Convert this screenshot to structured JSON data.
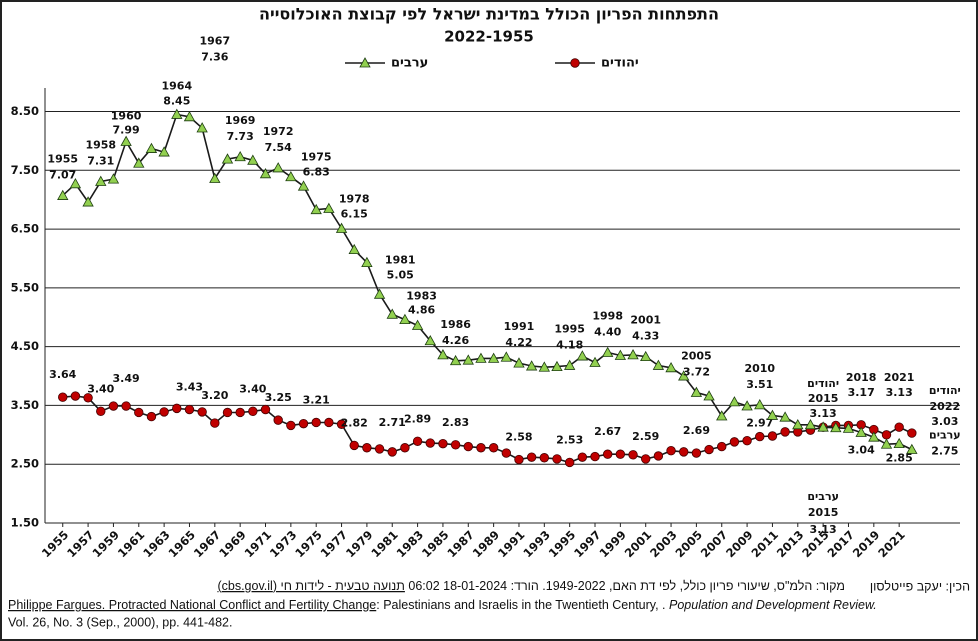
{
  "chart_data": {
    "type": "line",
    "title": "התפתחות הפריון הכולל במדינת ישראל לפי קבוצת האוכלוסייה",
    "subtitle": "2022-1955",
    "x": [
      1955,
      1956,
      1957,
      1958,
      1959,
      1960,
      1961,
      1962,
      1963,
      1964,
      1965,
      1966,
      1967,
      1968,
      1969,
      1970,
      1971,
      1972,
      1973,
      1974,
      1975,
      1976,
      1977,
      1978,
      1979,
      1980,
      1981,
      1982,
      1983,
      1984,
      1985,
      1986,
      1987,
      1988,
      1989,
      1990,
      1991,
      1992,
      1993,
      1994,
      1995,
      1996,
      1997,
      1998,
      1999,
      2000,
      2001,
      2002,
      2003,
      2004,
      2005,
      2006,
      2007,
      2008,
      2009,
      2010,
      2011,
      2012,
      2013,
      2014,
      2015,
      2016,
      2017,
      2018,
      2019,
      2020,
      2021,
      2022
    ],
    "xlim": [
      1953.6,
      2025.8
    ],
    "xticks": [
      1955,
      1957,
      1959,
      1961,
      1963,
      1965,
      1967,
      1969,
      1971,
      1973,
      1975,
      1977,
      1979,
      1981,
      1983,
      1985,
      1987,
      1989,
      1991,
      1993,
      1995,
      1997,
      1999,
      2001,
      2003,
      2005,
      2007,
      2009,
      2011,
      2013,
      2015,
      2017,
      2019,
      2021
    ],
    "ylim": [
      1.5,
      8.9
    ],
    "yticks": [
      {
        "value": 1.5,
        "label": "1.50"
      },
      {
        "value": 2.5,
        "label": "2.50"
      },
      {
        "value": 3.5,
        "label": "3.50"
      },
      {
        "value": 4.5,
        "label": "4.50"
      },
      {
        "value": 5.5,
        "label": "5.50"
      },
      {
        "value": 6.5,
        "label": "6.50"
      },
      {
        "value": 7.5,
        "label": "7.50"
      },
      {
        "value": 8.5,
        "label": "8.50"
      }
    ],
    "grid": true,
    "series": [
      {
        "name": "יהודים",
        "color": "#c00000",
        "marker": "circle",
        "values": [
          3.64,
          3.66,
          3.63,
          3.4,
          3.49,
          3.49,
          3.38,
          3.31,
          3.39,
          3.45,
          3.43,
          3.39,
          3.2,
          3.38,
          3.38,
          3.4,
          3.43,
          3.25,
          3.16,
          3.19,
          3.21,
          3.21,
          3.18,
          2.82,
          2.78,
          2.76,
          2.71,
          2.78,
          2.89,
          2.86,
          2.85,
          2.83,
          2.8,
          2.78,
          2.78,
          2.69,
          2.58,
          2.62,
          2.61,
          2.59,
          2.53,
          2.62,
          2.63,
          2.67,
          2.67,
          2.66,
          2.59,
          2.64,
          2.73,
          2.71,
          2.69,
          2.75,
          2.8,
          2.88,
          2.9,
          2.97,
          2.98,
          3.05,
          3.05,
          3.08,
          3.13,
          3.16,
          3.16,
          3.17,
          3.09,
          3.0,
          3.13,
          3.03
        ],
        "value_labels": [
          "3.64",
          null,
          null,
          "3.40",
          null,
          "3.49",
          null,
          null,
          null,
          null,
          "3.43",
          null,
          "3.20",
          null,
          null,
          "3.40",
          null,
          "3.25",
          null,
          null,
          "3.21",
          null,
          null,
          "2.82",
          null,
          null,
          "2.71",
          null,
          "2.89",
          null,
          null,
          "2.83",
          null,
          null,
          null,
          null,
          "2.58",
          null,
          null,
          null,
          "2.53",
          null,
          null,
          "2.67",
          null,
          null,
          "2.59",
          null,
          null,
          null,
          "2.69",
          null,
          null,
          null,
          null,
          "2.97",
          null,
          null,
          null,
          null,
          "3.13",
          null,
          null,
          "3.17",
          null,
          null,
          "3.13",
          "3.03"
        ],
        "label_years": [
          2015,
          2018,
          2021,
          2022
        ]
      },
      {
        "name": "ערבים",
        "color": "#92d050",
        "marker": "triangle",
        "values": [
          7.07,
          7.27,
          6.96,
          7.31,
          7.35,
          7.99,
          7.62,
          7.87,
          7.81,
          8.45,
          8.41,
          8.22,
          7.36,
          7.69,
          7.73,
          7.67,
          7.44,
          7.54,
          7.39,
          7.23,
          6.83,
          6.85,
          6.51,
          6.15,
          5.93,
          5.39,
          5.05,
          4.96,
          4.86,
          4.6,
          4.36,
          4.26,
          4.27,
          4.3,
          4.3,
          4.32,
          4.22,
          4.17,
          4.15,
          4.16,
          4.18,
          4.34,
          4.23,
          4.4,
          4.35,
          4.36,
          4.33,
          4.18,
          4.14,
          4.0,
          3.72,
          3.66,
          3.32,
          3.56,
          3.49,
          3.51,
          3.33,
          3.3,
          3.17,
          3.17,
          3.13,
          3.12,
          3.11,
          3.04,
          2.96,
          2.84,
          2.85,
          2.75
        ],
        "value_labels": [
          "7.07",
          null,
          null,
          "7.31",
          null,
          "7.99",
          null,
          null,
          null,
          "8.45",
          null,
          null,
          "7.36",
          null,
          "7.73",
          null,
          null,
          "7.54",
          null,
          null,
          "6.83",
          null,
          null,
          "6.15",
          null,
          null,
          "5.05",
          null,
          "4.86",
          null,
          null,
          "4.26",
          null,
          null,
          null,
          null,
          "4.22",
          null,
          null,
          null,
          "4.18",
          null,
          null,
          "4.40",
          null,
          null,
          "4.33",
          null,
          null,
          null,
          "3.72",
          null,
          null,
          null,
          null,
          "3.51",
          null,
          null,
          null,
          null,
          "3.13",
          null,
          null,
          "3.04",
          null,
          null,
          "2.85",
          "2.75"
        ],
        "label_years": [
          1955,
          1958,
          1960,
          1964,
          1967,
          1969,
          1972,
          1975,
          1978,
          1981,
          1983,
          1986,
          1991,
          1995,
          1998,
          2001,
          2005,
          2010,
          2015
        ]
      }
    ],
    "credit": "הכין: יעקב פייטלסון",
    "source": "מקור: הלמ\"ס, שיעורי פריון כולל, לפי דת האם, 1949-2022. הורד: 18-01-2024 06:02 ",
    "source_link": "תנועה טבעית - לידות חי (cbs.gov.il)",
    "reference": {
      "author": "Philippe Fargues. Protracted National Conflict and Fertility Change",
      "rest": ": Palestinians and Israelis in the Twentieth Century, . ",
      "journal": "Population and Development Review.",
      "details": "Vol. 26, No. 3 (Sep., 2000), pp. 441-482."
    }
  }
}
